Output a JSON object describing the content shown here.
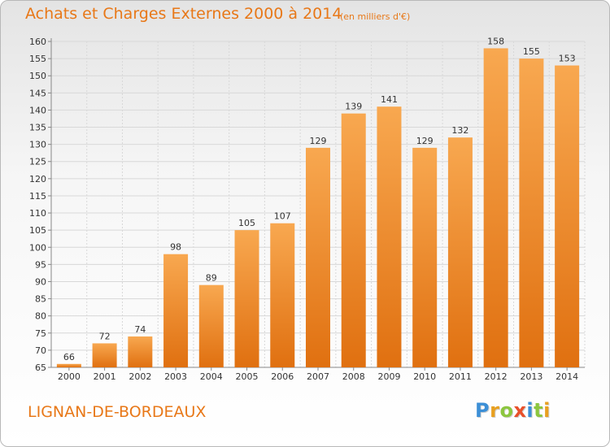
{
  "title": "Achats et Charges Externes 2000 à 2014",
  "unit_note": "(en milliers d'€)",
  "location": "LIGNAN-DE-BORDEAUX",
  "brand": {
    "text": "Proxiti",
    "letters": [
      {
        "char": "P",
        "color": "#3c8fd6"
      },
      {
        "char": "r",
        "color": "#e8a020"
      },
      {
        "char": "o",
        "color": "#8cc63f"
      },
      {
        "char": "x",
        "color": "#e8502a"
      },
      {
        "char": "i",
        "color": "#3c8fd6"
      },
      {
        "char": "t",
        "color": "#8cc63f"
      },
      {
        "char": "i",
        "color": "#e8a020"
      }
    ]
  },
  "colors": {
    "accent": "#e87818",
    "bar_top": "#f8a850",
    "bar_bottom": "#e07010",
    "grid": "#d8d8d8"
  },
  "chart_data": {
    "type": "bar",
    "title": "Achats et Charges Externes 2000 à 2014",
    "categories": [
      "2000",
      "2001",
      "2002",
      "2003",
      "2004",
      "2005",
      "2006",
      "2007",
      "2008",
      "2009",
      "2010",
      "2011",
      "2012",
      "2013",
      "2014"
    ],
    "values": [
      66,
      72,
      74,
      98,
      89,
      105,
      107,
      129,
      139,
      141,
      129,
      132,
      158,
      155,
      153
    ],
    "ylim": [
      65,
      160
    ],
    "yticks": [
      65,
      70,
      75,
      80,
      85,
      90,
      95,
      100,
      105,
      110,
      115,
      120,
      125,
      130,
      135,
      140,
      145,
      150,
      155,
      160
    ],
    "grid": true
  }
}
